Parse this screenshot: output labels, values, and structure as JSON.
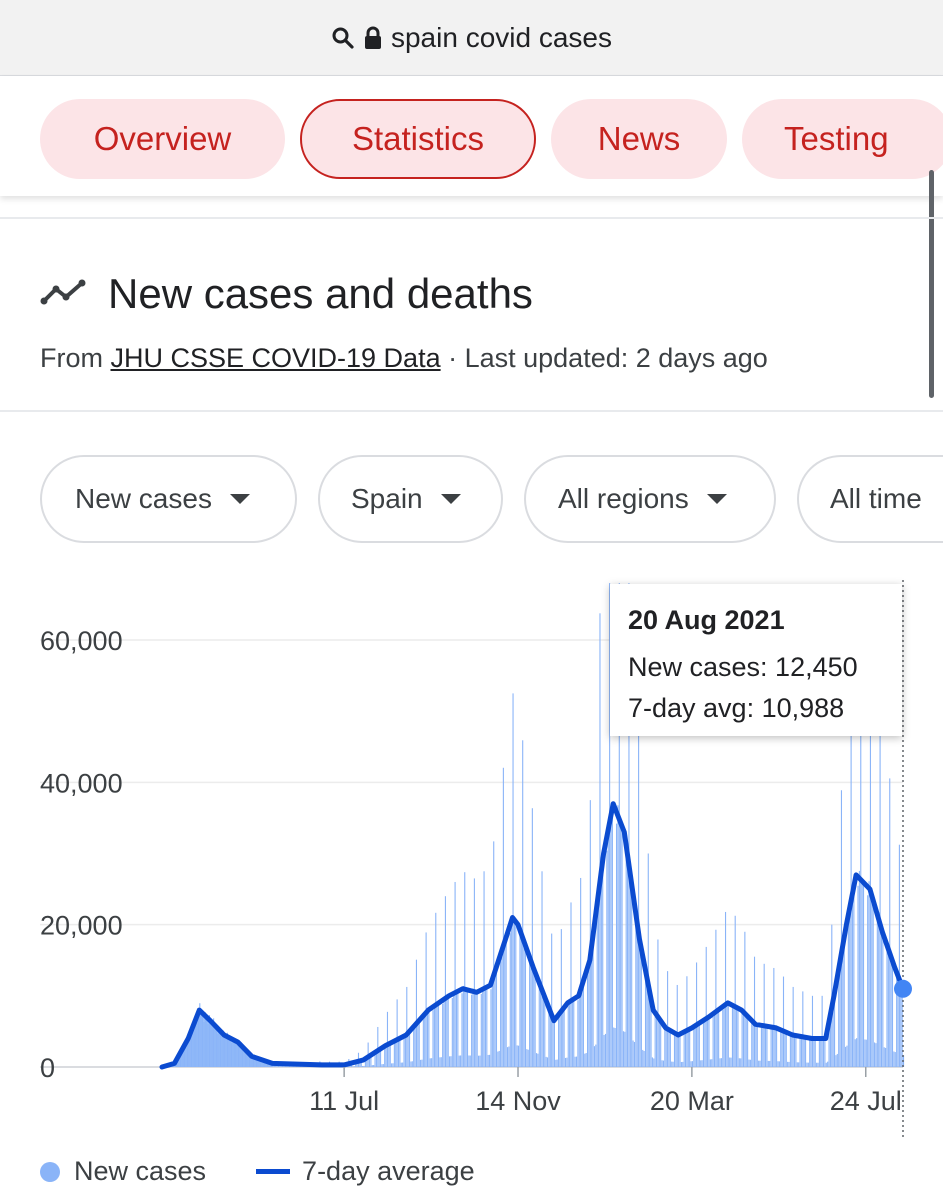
{
  "address_bar": {
    "query": "spain covid cases"
  },
  "tabs": [
    {
      "label": "Overview",
      "active": false
    },
    {
      "label": "Statistics",
      "active": true
    },
    {
      "label": "News",
      "active": false
    },
    {
      "label": "Testing",
      "active": false
    }
  ],
  "section": {
    "title": "New cases and deaths",
    "source_prefix": "From ",
    "source_link": "JHU CSSE COVID-19 Data",
    "source_suffix": " · Last updated: 2 days ago"
  },
  "filters": {
    "metric": "New cases",
    "location": "Spain",
    "region": "All regions",
    "time": "All time"
  },
  "tooltip": {
    "date": "20 Aug 2021",
    "new_cases": "New cases: 12,450",
    "avg": "7-day avg: 10,988"
  },
  "legend": {
    "bars": "New cases",
    "line": "7-day average"
  },
  "colors": {
    "accent": "#c5221f",
    "chip_bg": "#fce4e7",
    "bar": "#8ab4f8",
    "line": "#0b4bd0"
  },
  "chart_data": {
    "type": "bar",
    "y_ticks": [
      0,
      20000,
      40000,
      60000
    ],
    "y_tick_labels": [
      "0",
      "20,000",
      "40,000",
      "60,000"
    ],
    "ylim": [
      0,
      68500
    ],
    "x_ticks": [
      "2020-07-11",
      "2020-11-14",
      "2021-03-20",
      "2021-07-24"
    ],
    "x_tick_labels": [
      "11 Jul",
      "14 Nov",
      "20 Mar",
      "24 Jul"
    ],
    "x_range": [
      "2020-03-01",
      "2021-08-20"
    ],
    "series": [
      {
        "name": "New cases",
        "type": "bar",
        "note": "daily values (approximate, read from chart)"
      },
      {
        "name": "7-day average",
        "type": "line",
        "points": [
          [
            "2020-03-01",
            0
          ],
          [
            "2020-03-10",
            500
          ],
          [
            "2020-03-20",
            4000
          ],
          [
            "2020-03-28",
            8000
          ],
          [
            "2020-04-05",
            6500
          ],
          [
            "2020-04-15",
            4500
          ],
          [
            "2020-04-25",
            3500
          ],
          [
            "2020-05-05",
            1500
          ],
          [
            "2020-05-20",
            500
          ],
          [
            "2020-06-10",
            400
          ],
          [
            "2020-06-25",
            300
          ],
          [
            "2020-07-11",
            300
          ],
          [
            "2020-07-25",
            1000
          ],
          [
            "2020-08-10",
            3000
          ],
          [
            "2020-08-25",
            4500
          ],
          [
            "2020-09-10",
            8000
          ],
          [
            "2020-09-25",
            10000
          ],
          [
            "2020-10-05",
            11000
          ],
          [
            "2020-10-15",
            10500
          ],
          [
            "2020-10-25",
            11500
          ],
          [
            "2020-11-05",
            18000
          ],
          [
            "2020-11-10",
            21000
          ],
          [
            "2020-11-14",
            20000
          ],
          [
            "2020-11-25",
            14000
          ],
          [
            "2020-12-05",
            9000
          ],
          [
            "2020-12-10",
            6500
          ],
          [
            "2020-12-20",
            9000
          ],
          [
            "2020-12-28",
            10000
          ],
          [
            "2021-01-05",
            15000
          ],
          [
            "2021-01-15",
            30000
          ],
          [
            "2021-01-22",
            37000
          ],
          [
            "2021-01-30",
            33000
          ],
          [
            "2021-02-10",
            18000
          ],
          [
            "2021-02-20",
            8000
          ],
          [
            "2021-03-01",
            5500
          ],
          [
            "2021-03-10",
            4500
          ],
          [
            "2021-03-20",
            5500
          ],
          [
            "2021-04-01",
            7000
          ],
          [
            "2021-04-15",
            9000
          ],
          [
            "2021-04-25",
            8000
          ],
          [
            "2021-05-05",
            6000
          ],
          [
            "2021-05-20",
            5500
          ],
          [
            "2021-06-01",
            4500
          ],
          [
            "2021-06-15",
            4000
          ],
          [
            "2021-06-25",
            4000
          ],
          [
            "2021-07-01",
            10000
          ],
          [
            "2021-07-10",
            20000
          ],
          [
            "2021-07-17",
            27000
          ],
          [
            "2021-07-27",
            25000
          ],
          [
            "2021-08-05",
            19000
          ],
          [
            "2021-08-14",
            14000
          ],
          [
            "2021-08-20",
            10988
          ]
        ]
      }
    ],
    "highlight": {
      "date": "2021-08-20",
      "value": 10988
    },
    "grid": true,
    "legend_position": "bottom-left"
  }
}
